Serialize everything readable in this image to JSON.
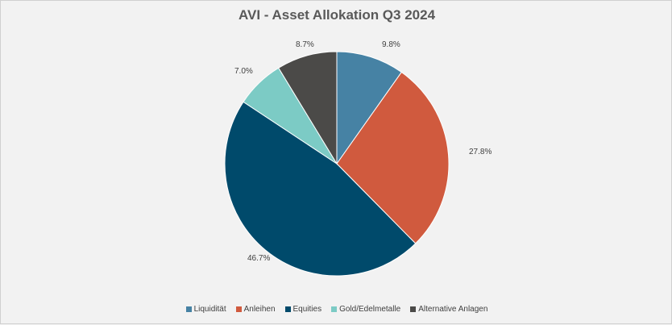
{
  "chart_data": {
    "type": "pie",
    "title": "AVI - Asset Allokation Q3 2024",
    "categories": [
      "Liquidität",
      "Anleihen",
      "Equities",
      "Gold/Edelmetalle",
      "Alternative Anlagen"
    ],
    "values": [
      9.8,
      27.8,
      46.7,
      7.0,
      8.7
    ],
    "value_labels": [
      "9.8%",
      "27.8%",
      "46.7%",
      "7.0%",
      "8.7%"
    ],
    "colors": [
      "#4682a4",
      "#d05a3e",
      "#004a6b",
      "#7ccbc5",
      "#4b4a48"
    ],
    "legend_position": "bottom",
    "start_angle": "12 o'clock",
    "direction": "clockwise"
  }
}
